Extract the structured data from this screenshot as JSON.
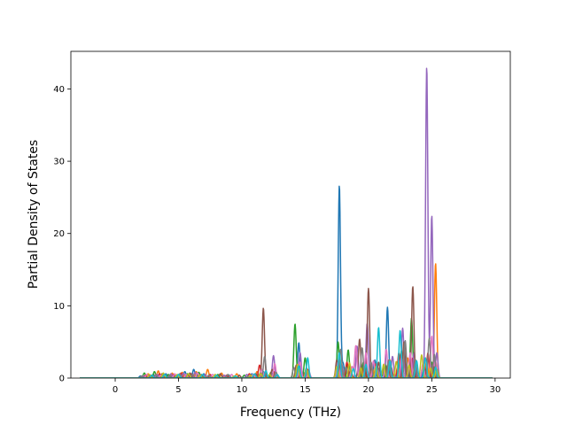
{
  "chart_data": {
    "type": "line",
    "title": "",
    "xlabel": "Frequency (THz)",
    "ylabel": "Partial Density of States",
    "xlim": [
      -3.5,
      31.2
    ],
    "ylim": [
      0,
      45.2
    ],
    "xticks": [
      0,
      5,
      10,
      15,
      20,
      25,
      30
    ],
    "yticks": [
      0,
      10,
      20,
      30,
      40
    ],
    "grid": false,
    "legend": "none",
    "x_range": [
      -2.8,
      29.8
    ],
    "series": [
      {
        "color": "#1f77b4",
        "peaks": [
          [
            2.0,
            0.3
          ],
          [
            3.0,
            0.5
          ],
          [
            4.0,
            0.6
          ],
          [
            5.5,
            0.9
          ],
          [
            6.2,
            1.2
          ],
          [
            7.0,
            0.6
          ],
          [
            9.0,
            0.4
          ],
          [
            10.8,
            0.6
          ],
          [
            11.7,
            0.9
          ],
          [
            12.4,
            0.7
          ],
          [
            14.5,
            4.9
          ],
          [
            15.1,
            1.4
          ],
          [
            17.7,
            26.7
          ],
          [
            18.0,
            2.0
          ],
          [
            19.2,
            1.2
          ],
          [
            20.5,
            2.5
          ],
          [
            21.5,
            9.8
          ],
          [
            22.5,
            2.2
          ],
          [
            23.3,
            3.0
          ],
          [
            24.4,
            1.5
          ],
          [
            25.1,
            1.6
          ]
        ]
      },
      {
        "color": "#ff7f0e",
        "peaks": [
          [
            2.6,
            0.6
          ],
          [
            3.4,
            1.0
          ],
          [
            4.5,
            0.7
          ],
          [
            5.3,
            0.8
          ],
          [
            6.4,
            0.9
          ],
          [
            7.3,
            1.2
          ],
          [
            8.4,
            0.7
          ],
          [
            9.6,
            0.6
          ],
          [
            11.2,
            0.9
          ],
          [
            12.5,
            0.6
          ],
          [
            14.3,
            1.2
          ],
          [
            15.2,
            0.9
          ],
          [
            17.8,
            2.0
          ],
          [
            19.5,
            1.5
          ],
          [
            20.3,
            1.3
          ],
          [
            21.7,
            2.5
          ],
          [
            22.3,
            1.5
          ],
          [
            23.1,
            2.8
          ],
          [
            24.6,
            2.5
          ],
          [
            25.3,
            15.9
          ]
        ]
      },
      {
        "color": "#2ca02c",
        "peaks": [
          [
            2.3,
            0.7
          ],
          [
            3.1,
            0.9
          ],
          [
            4.2,
            0.5
          ],
          [
            5.7,
            0.6
          ],
          [
            6.6,
            0.8
          ],
          [
            8.1,
            0.5
          ],
          [
            10.2,
            0.4
          ],
          [
            11.5,
            0.8
          ],
          [
            12.3,
            0.8
          ],
          [
            14.2,
            7.5
          ],
          [
            15.0,
            2.8
          ],
          [
            17.6,
            5.0
          ],
          [
            18.4,
            3.9
          ],
          [
            19.6,
            2.2
          ],
          [
            20.9,
            1.5
          ],
          [
            21.3,
            2.0
          ],
          [
            22.6,
            3.8
          ],
          [
            23.4,
            8.3
          ],
          [
            24.3,
            1.8
          ],
          [
            25.0,
            2.2
          ]
        ]
      },
      {
        "color": "#d62728",
        "peaks": [
          [
            2.4,
            0.4
          ],
          [
            3.5,
            0.6
          ],
          [
            4.6,
            0.5
          ],
          [
            5.2,
            0.7
          ],
          [
            6.0,
            0.6
          ],
          [
            7.5,
            0.5
          ],
          [
            8.8,
            0.4
          ],
          [
            10.6,
            0.6
          ],
          [
            11.4,
            1.8
          ],
          [
            12.6,
            0.9
          ],
          [
            14.4,
            1.4
          ],
          [
            15.2,
            1.2
          ],
          [
            17.7,
            3.0
          ],
          [
            18.3,
            2.2
          ],
          [
            19.7,
            1.8
          ],
          [
            20.6,
            2.0
          ],
          [
            21.8,
            1.5
          ],
          [
            22.4,
            3.5
          ],
          [
            23.5,
            2.8
          ],
          [
            24.7,
            3.5
          ],
          [
            25.2,
            2.5
          ]
        ]
      },
      {
        "color": "#9467bd",
        "peaks": [
          [
            2.2,
            0.3
          ],
          [
            3.3,
            0.5
          ],
          [
            4.4,
            0.6
          ],
          [
            5.4,
            0.7
          ],
          [
            6.3,
            0.8
          ],
          [
            7.1,
            0.5
          ],
          [
            8.6,
            0.4
          ],
          [
            10.4,
            0.5
          ],
          [
            11.8,
            0.8
          ],
          [
            12.5,
            3.1
          ],
          [
            14.6,
            3.5
          ],
          [
            15.1,
            1.0
          ],
          [
            17.9,
            1.8
          ],
          [
            19.1,
            4.4
          ],
          [
            19.9,
            7.6
          ],
          [
            20.7,
            1.6
          ],
          [
            21.9,
            3.0
          ],
          [
            22.7,
            6.9
          ],
          [
            23.6,
            3.5
          ],
          [
            24.6,
            43.1
          ],
          [
            25.0,
            22.5
          ],
          [
            25.4,
            3.5
          ]
        ]
      },
      {
        "color": "#8c564b",
        "peaks": [
          [
            2.8,
            0.4
          ],
          [
            3.7,
            0.6
          ],
          [
            4.8,
            0.4
          ],
          [
            5.9,
            0.7
          ],
          [
            6.8,
            0.5
          ],
          [
            8.3,
            0.6
          ],
          [
            9.8,
            0.4
          ],
          [
            11.1,
            0.6
          ],
          [
            11.7,
            9.7
          ],
          [
            12.4,
            1.2
          ],
          [
            14.3,
            1.8
          ],
          [
            15.0,
            0.8
          ],
          [
            17.5,
            2.5
          ],
          [
            18.6,
            1.2
          ],
          [
            19.3,
            5.4
          ],
          [
            20.0,
            12.4
          ],
          [
            20.8,
            2.2
          ],
          [
            21.5,
            1.8
          ],
          [
            22.8,
            5.0
          ],
          [
            23.5,
            12.7
          ],
          [
            24.5,
            1.2
          ],
          [
            25.1,
            2.0
          ]
        ]
      },
      {
        "color": "#e377c2",
        "peaks": [
          [
            2.5,
            0.5
          ],
          [
            3.6,
            0.4
          ],
          [
            4.7,
            0.6
          ],
          [
            5.6,
            0.5
          ],
          [
            6.5,
            0.7
          ],
          [
            7.7,
            0.5
          ],
          [
            9.2,
            0.5
          ],
          [
            10.9,
            0.5
          ],
          [
            11.6,
            1.2
          ],
          [
            12.6,
            2.0
          ],
          [
            14.6,
            2.2
          ],
          [
            15.3,
            0.9
          ],
          [
            17.6,
            2.2
          ],
          [
            18.7,
            1.6
          ],
          [
            19.0,
            4.5
          ],
          [
            19.8,
            3.5
          ],
          [
            20.4,
            2.4
          ],
          [
            21.4,
            4.0
          ],
          [
            22.6,
            2.8
          ],
          [
            23.3,
            3.5
          ],
          [
            24.3,
            2.0
          ],
          [
            25.0,
            5.8
          ],
          [
            25.3,
            2.3
          ]
        ]
      },
      {
        "color": "#7f7f7f",
        "peaks": [
          [
            2.1,
            0.3
          ],
          [
            3.2,
            0.5
          ],
          [
            4.3,
            0.4
          ],
          [
            5.1,
            0.6
          ],
          [
            6.1,
            0.5
          ],
          [
            7.4,
            0.4
          ],
          [
            8.9,
            0.5
          ],
          [
            10.5,
            0.3
          ],
          [
            11.8,
            3.0
          ],
          [
            12.7,
            0.8
          ],
          [
            14.1,
            1.5
          ],
          [
            15.2,
            1.0
          ],
          [
            17.8,
            4.0
          ],
          [
            18.2,
            1.5
          ],
          [
            19.5,
            4.2
          ],
          [
            20.2,
            2.2
          ],
          [
            21.6,
            2.5
          ],
          [
            22.9,
            5.2
          ],
          [
            23.7,
            2.6
          ],
          [
            24.8,
            5.5
          ],
          [
            25.2,
            3.3
          ]
        ]
      },
      {
        "color": "#bcbd22",
        "peaks": [
          [
            2.7,
            0.5
          ],
          [
            3.8,
            0.7
          ],
          [
            4.9,
            0.5
          ],
          [
            5.8,
            0.6
          ],
          [
            6.7,
            0.4
          ],
          [
            7.9,
            0.5
          ],
          [
            9.4,
            0.3
          ],
          [
            10.7,
            0.4
          ],
          [
            11.5,
            0.6
          ],
          [
            12.2,
            0.5
          ],
          [
            14.4,
            1.9
          ],
          [
            15.1,
            1.3
          ],
          [
            17.5,
            1.6
          ],
          [
            18.5,
            2.1
          ],
          [
            19.4,
            1.4
          ],
          [
            20.6,
            1.6
          ],
          [
            21.2,
            1.9
          ],
          [
            22.2,
            2.3
          ],
          [
            23.2,
            1.8
          ],
          [
            24.2,
            3.2
          ],
          [
            24.9,
            1.4
          ],
          [
            25.4,
            1.2
          ]
        ]
      },
      {
        "color": "#17becf",
        "peaks": [
          [
            2.9,
            0.4
          ],
          [
            3.9,
            0.5
          ],
          [
            5.0,
            0.5
          ],
          [
            6.9,
            0.5
          ],
          [
            8.0,
            0.4
          ],
          [
            9.5,
            0.3
          ],
          [
            11.0,
            0.6
          ],
          [
            11.9,
            1.0
          ],
          [
            12.8,
            0.5
          ],
          [
            14.5,
            1.7
          ],
          [
            15.2,
            2.8
          ],
          [
            17.7,
            3.5
          ],
          [
            18.8,
            1.3
          ],
          [
            19.8,
            1.9
          ],
          [
            20.8,
            7.0
          ],
          [
            21.7,
            2.4
          ],
          [
            22.5,
            6.6
          ],
          [
            23.8,
            2.4
          ],
          [
            24.5,
            2.8
          ],
          [
            25.3,
            1.5
          ]
        ]
      }
    ]
  }
}
